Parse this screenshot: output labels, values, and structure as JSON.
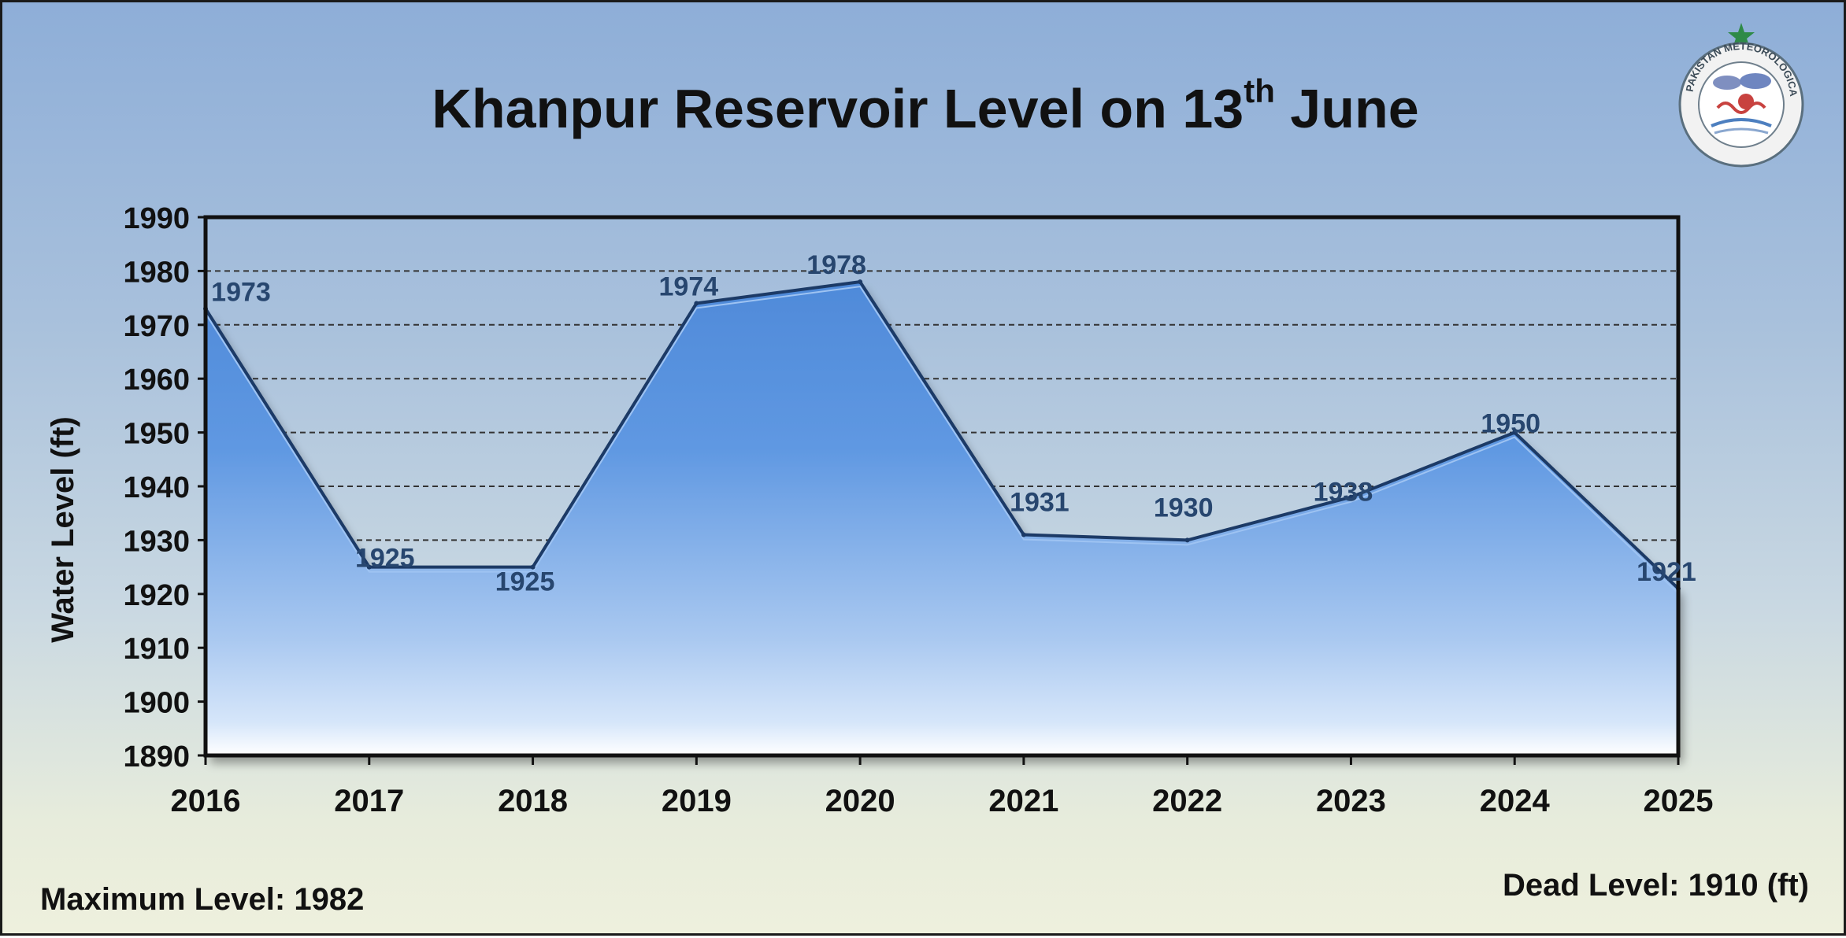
{
  "title": {
    "text": "Khanpur Reservoir Level on 13",
    "sup": "th",
    "after": " June"
  },
  "logo": {
    "icon": "pakistan-meteorological-department-seal-icon",
    "ring_text": "PAKISTAN METEOROLOGICAL DEPARTMENT"
  },
  "footer": {
    "max_level": "Maximum Level: 1982",
    "dead_level": "Dead Level: 1910 (ft)"
  },
  "chart_data": {
    "type": "area",
    "title": "Khanpur Reservoir Level on 13th June",
    "xlabel": "",
    "ylabel": "Water Level (ft)",
    "x": [
      "2016",
      "2017",
      "2018",
      "2019",
      "2020",
      "2021",
      "2022",
      "2023",
      "2024",
      "2025"
    ],
    "values": [
      1973,
      1925,
      1925,
      1974,
      1978,
      1931,
      1930,
      1938,
      1950,
      1921
    ],
    "data_labels": [
      "1973",
      "1925",
      "1925",
      "1974",
      "1978",
      "1931",
      "1930",
      "1938",
      "1950",
      "1921"
    ],
    "ylim": [
      1890,
      1990
    ],
    "yticks": [
      1890,
      1900,
      1910,
      1920,
      1930,
      1940,
      1950,
      1960,
      1970,
      1980,
      1990
    ],
    "grid": true,
    "legend": "none",
    "colors": {
      "area_top": "#5b93e0",
      "area_bottom": "#ffffff",
      "outline": "#1c3a66",
      "label": "#27466f"
    }
  }
}
